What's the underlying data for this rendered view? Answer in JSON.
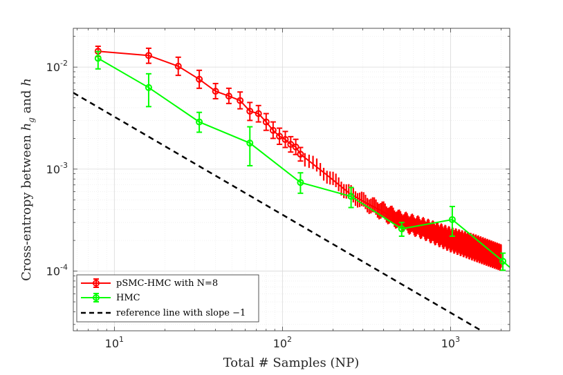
{
  "chart_data": {
    "type": "line",
    "title": "",
    "xlabel": "Total # Samples (NP)",
    "ylabel": "Cross-entropy between h_g and h",
    "ylabel_parts": {
      "prefix": "Cross-entropy between ",
      "h1": "h",
      "sub": "g",
      "mid": " and ",
      "h2": "h"
    },
    "xscale": "log",
    "yscale": "log",
    "xlim": [
      5.7,
      2250
    ],
    "ylim": [
      2.6e-05,
      0.024
    ],
    "grid": true,
    "x_ticks": [
      {
        "value": 10,
        "base": "10",
        "exp": "1"
      },
      {
        "value": 100,
        "base": "10",
        "exp": "2"
      },
      {
        "value": 1000,
        "base": "10",
        "exp": "3"
      }
    ],
    "y_ticks": [
      {
        "value": 0.0001,
        "base": "10",
        "exp": "-4"
      },
      {
        "value": 0.001,
        "base": "10",
        "exp": "-3"
      },
      {
        "value": 0.01,
        "base": "10",
        "exp": "-2"
      }
    ],
    "legend_position": "bottom-left",
    "series": [
      {
        "name": "pSMC-HMC with N=8",
        "color": "#ff0000",
        "marker": "circle",
        "x": [
          8,
          16,
          24,
          32,
          40,
          48,
          56,
          64,
          72,
          80,
          88,
          96,
          104,
          112,
          120,
          128
        ],
        "y": [
          0.0143,
          0.013,
          0.0102,
          0.0076,
          0.0058,
          0.0052,
          0.0047,
          0.0037,
          0.0035,
          0.0029,
          0.0024,
          0.0021,
          0.00195,
          0.00175,
          0.00165,
          0.0014
        ],
        "err_low": [
          0.0127,
          0.0109,
          0.0083,
          0.0062,
          0.0049,
          0.0044,
          0.0039,
          0.003,
          0.0029,
          0.0024,
          0.002,
          0.00175,
          0.00163,
          0.00147,
          0.00139,
          0.0012
        ],
        "err_high": [
          0.016,
          0.0153,
          0.0125,
          0.0093,
          0.0069,
          0.0062,
          0.0057,
          0.0045,
          0.0042,
          0.0035,
          0.0029,
          0.00252,
          0.00234,
          0.00208,
          0.00196,
          0.00163
        ],
        "dense_band": {
          "x": [
            128,
            180,
            250,
            320,
            400,
            500,
            700,
            1000,
            1400,
            2000
          ],
          "y": [
            0.0014,
            0.0009,
            0.00058,
            0.00046,
            0.00038,
            0.00031,
            0.00026,
            0.00021,
            0.00017,
            0.000135
          ],
          "low": [
            0.0012,
            0.00078,
            0.00049,
            0.00039,
            0.00032,
            0.00026,
            0.00021,
            0.00016,
            0.00013,
            0.000105
          ],
          "high": [
            0.00163,
            0.00104,
            0.00068,
            0.00054,
            0.00046,
            0.00038,
            0.00032,
            0.00026,
            0.00022,
            0.000175
          ]
        }
      },
      {
        "name": "HMC",
        "color": "#00ff00",
        "marker": "circle",
        "x": [
          8,
          16,
          32,
          64,
          128,
          256,
          512,
          1024,
          2048
        ],
        "y": [
          0.0122,
          0.0063,
          0.0029,
          0.0018,
          0.00074,
          0.00054,
          0.00026,
          0.00032,
          0.000125
        ],
        "err_low": [
          0.0096,
          0.0041,
          0.0023,
          0.00108,
          0.00058,
          0.00042,
          0.00022,
          0.00022,
          0.000102
        ],
        "err_high": [
          0.0142,
          0.0086,
          0.0036,
          0.0026,
          0.00092,
          0.00066,
          0.0003,
          0.00043,
          0.00015
        ],
        "tail": {
          "x": 2250,
          "y": 0.000109
        }
      },
      {
        "name": "reference line with slope −1",
        "color": "#000000",
        "style": "dashed",
        "x": [
          5.7,
          1530
        ],
        "y": [
          0.0056,
          2.6e-05
        ]
      }
    ]
  }
}
